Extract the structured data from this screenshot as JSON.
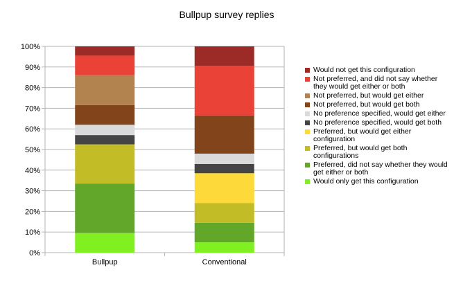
{
  "chart_data": {
    "type": "bar",
    "stacked": true,
    "percent": true,
    "title": "Bullpup survey replies",
    "categories": [
      "Bullpup",
      "Conventional"
    ],
    "ylim": [
      0,
      100
    ],
    "yticks": [
      "0%",
      "10%",
      "20%",
      "30%",
      "40%",
      "50%",
      "60%",
      "70%",
      "80%",
      "90%",
      "100%"
    ],
    "grid": true,
    "legend_position": "right",
    "series": [
      {
        "name": "Would only get this configuration",
        "color": "#80f020",
        "values": [
          9.5,
          5.0
        ]
      },
      {
        "name": "Preferred, did not say whether they would get either or both",
        "color": "#62a62a",
        "values": [
          24.0,
          9.5
        ]
      },
      {
        "name": "Preferred, but would get both configurations",
        "color": "#c2bc26",
        "values": [
          19.0,
          9.5
        ]
      },
      {
        "name": "Preferred, but would get either configuration",
        "color": "#fdd93a",
        "values": [
          0,
          14.5
        ]
      },
      {
        "name": "No preference specified, would get both",
        "color": "#454545",
        "values": [
          4.5,
          4.5
        ]
      },
      {
        "name": "No preference specified, would get either",
        "color": "#dadada",
        "values": [
          5.0,
          5.0
        ]
      },
      {
        "name": "Not preferred, but would get both",
        "color": "#82451b",
        "values": [
          9.5,
          18.5
        ]
      },
      {
        "name": "Not preferred, but would get either",
        "color": "#b2834e",
        "values": [
          14.5,
          0
        ]
      },
      {
        "name": "Not preferred, and did not say whether they would get either or both",
        "color": "#ea4236",
        "values": [
          9.5,
          24.0
        ]
      },
      {
        "name": "Would not get this configuration",
        "color": "#9c2a26",
        "values": [
          4.5,
          9.5
        ]
      }
    ]
  }
}
